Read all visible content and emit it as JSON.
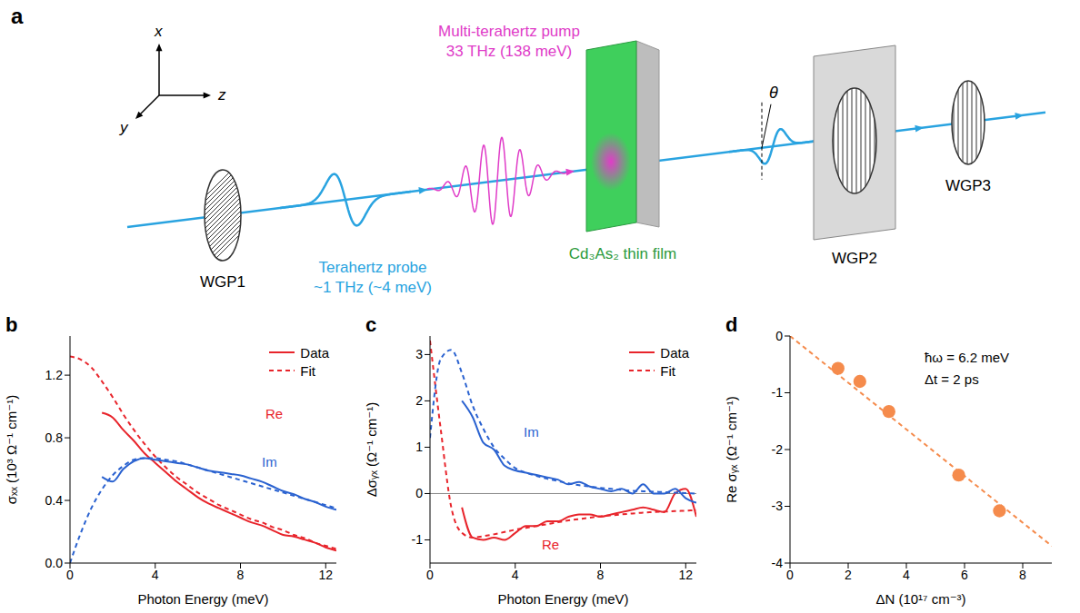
{
  "diagram": {
    "panel": "a",
    "axes": [
      "x",
      "y",
      "z"
    ],
    "pump": {
      "title": "Multi-terahertz pump",
      "subtitle": "33 THz (138 meV)"
    },
    "probe": {
      "title": "Terahertz probe",
      "subtitle": "~1 THz (~4 meV)"
    },
    "sample": "Cd₃As₂ thin film",
    "angle": "θ",
    "polarizers": [
      "WGP1",
      "WGP2",
      "WGP3"
    ]
  },
  "chart_data": [
    {
      "panel": "b",
      "type": "line",
      "x_label": "Photon Energy (meV)",
      "y_label": "σₓₓ (10³ Ω⁻¹ cm⁻¹)",
      "xlim": [
        0,
        12.5
      ],
      "xticks": [
        0,
        4,
        8,
        12
      ],
      "ylim": [
        0,
        1.45
      ],
      "yticks": [
        {
          "value": 0,
          "label": "0.0"
        },
        0.4,
        0.8,
        1.2
      ],
      "legend": "upper right",
      "x": [
        0,
        0.5,
        1,
        1.5,
        2,
        2.5,
        3,
        3.5,
        4,
        4.5,
        5,
        5.5,
        6,
        6.5,
        7,
        7.5,
        8,
        8.5,
        9,
        9.5,
        10,
        10.5,
        11,
        11.5,
        12,
        12.5
      ],
      "annotations": [
        {
          "text": "Re",
          "color": "#e8242b"
        },
        {
          "text": "Im",
          "color": "#2a62d0"
        }
      ],
      "series": [
        {
          "name": "Data",
          "color": "#e8242b",
          "line_style": "solid",
          "values": [
            null,
            null,
            null,
            0.96,
            0.93,
            0.85,
            0.78,
            0.7,
            0.64,
            0.58,
            0.52,
            0.47,
            0.42,
            0.38,
            0.35,
            0.32,
            0.29,
            0.26,
            0.24,
            0.21,
            0.18,
            0.17,
            0.15,
            0.13,
            0.1,
            0.08
          ]
        },
        {
          "name": "Fit",
          "color": "#e8242b",
          "line_style": "dashed",
          "values": [
            1.32,
            1.3,
            1.25,
            1.16,
            1.06,
            0.95,
            0.85,
            0.76,
            0.68,
            0.61,
            0.55,
            0.5,
            0.45,
            0.41,
            0.37,
            0.34,
            0.31,
            0.28,
            0.26,
            0.23,
            0.21,
            0.18,
            0.16,
            0.13,
            0.11,
            0.09
          ]
        },
        {
          "name": "Data",
          "color": "#2a62d0",
          "line_style": "solid",
          "values": [
            null,
            null,
            null,
            0.55,
            0.52,
            0.6,
            0.65,
            0.67,
            0.66,
            0.65,
            0.64,
            0.63,
            0.61,
            0.59,
            0.58,
            0.57,
            0.56,
            0.54,
            0.52,
            0.49,
            0.46,
            0.44,
            0.41,
            0.39,
            0.36,
            0.34
          ]
        },
        {
          "name": "Fit",
          "color": "#2a62d0",
          "line_style": "dashed",
          "values": [
            0,
            0.19,
            0.35,
            0.47,
            0.56,
            0.62,
            0.66,
            0.67,
            0.67,
            0.66,
            0.65,
            0.63,
            0.61,
            0.59,
            0.57,
            0.55,
            0.53,
            0.51,
            0.49,
            0.47,
            0.45,
            0.43,
            0.41,
            0.39,
            0.37,
            0.35
          ]
        }
      ]
    },
    {
      "panel": "c",
      "type": "line",
      "x_label": "Photon Energy (meV)",
      "y_label": "Δσᵧₓ (Ω⁻¹ cm⁻¹)",
      "xlim": [
        0,
        12.5
      ],
      "xticks": [
        0,
        4,
        8,
        12
      ],
      "ylim": [
        -1.5,
        3.4
      ],
      "yticks": [
        -1,
        0,
        1,
        2,
        3
      ],
      "hline": 0,
      "legend": "upper right",
      "x": [
        0,
        0.5,
        1,
        1.5,
        2,
        2.5,
        3,
        3.5,
        4,
        4.5,
        5,
        5.5,
        6,
        6.5,
        7,
        7.5,
        8,
        8.5,
        9,
        9.5,
        10,
        10.5,
        11,
        11.5,
        12,
        12.5
      ],
      "annotations": [
        {
          "text": "Re",
          "color": "#e8242b"
        },
        {
          "text": "Im",
          "color": "#2a62d0"
        }
      ],
      "series": [
        {
          "name": "Data",
          "color": "#e8242b",
          "line_style": "solid",
          "values": [
            null,
            null,
            null,
            -0.3,
            -0.95,
            -1.0,
            -0.95,
            -1.0,
            -0.85,
            -0.7,
            -0.7,
            -0.6,
            -0.6,
            -0.5,
            -0.45,
            -0.45,
            -0.5,
            -0.45,
            -0.4,
            -0.35,
            -0.3,
            -0.35,
            -0.4,
            0.0,
            0.1,
            -0.5
          ]
        },
        {
          "name": "Fit",
          "color": "#e8242b",
          "line_style": "dashed",
          "values": [
            3.3,
            1.4,
            -0.3,
            -0.85,
            -0.95,
            -0.92,
            -0.88,
            -0.83,
            -0.78,
            -0.74,
            -0.7,
            -0.66,
            -0.62,
            -0.58,
            -0.55,
            -0.52,
            -0.49,
            -0.47,
            -0.45,
            -0.43,
            -0.41,
            -0.4,
            -0.39,
            -0.38,
            -0.37,
            -0.36
          ]
        },
        {
          "name": "Data",
          "color": "#2a62d0",
          "line_style": "solid",
          "values": [
            null,
            null,
            null,
            2.0,
            1.65,
            1.1,
            0.95,
            0.6,
            0.5,
            0.45,
            0.4,
            0.35,
            0.3,
            0.2,
            0.25,
            0.15,
            0.1,
            0.05,
            0.1,
            0.0,
            0.2,
            0.0,
            0.0,
            0.1,
            -0.1,
            -0.2
          ]
        },
        {
          "name": "Fit",
          "color": "#2a62d0",
          "line_style": "dashed",
          "values": [
            1.2,
            2.9,
            3.1,
            2.6,
            1.9,
            1.4,
            1.0,
            0.75,
            0.55,
            0.45,
            0.38,
            0.32,
            0.27,
            0.22,
            0.18,
            0.15,
            0.12,
            0.1,
            0.08,
            0.06,
            0.05,
            0.04,
            0.03,
            0.02,
            0.01,
            0.0
          ]
        }
      ]
    },
    {
      "panel": "d",
      "type": "scatter",
      "x_label": "ΔN (10¹⁷ cm⁻³)",
      "y_label": "Re σᵧₓ (Ω⁻¹ cm⁻¹)",
      "xlim": [
        0,
        9
      ],
      "xticks": [
        0,
        2,
        4,
        6,
        8
      ],
      "ylim": [
        -4,
        0
      ],
      "yticks": [
        -4,
        -3,
        -2,
        -1,
        0
      ],
      "color": "#f58b4c",
      "marker": "circle",
      "x": [
        1.65,
        2.4,
        3.4,
        5.8,
        7.2
      ],
      "values": [
        -0.57,
        -0.8,
        -1.33,
        -2.45,
        -3.08
      ],
      "fit": {
        "x": [
          0,
          9
        ],
        "values": [
          0,
          -3.7
        ],
        "line_style": "dashed"
      },
      "annotations": [
        "ħω = 6.2 meV",
        "Δt = 2 ps"
      ]
    }
  ]
}
